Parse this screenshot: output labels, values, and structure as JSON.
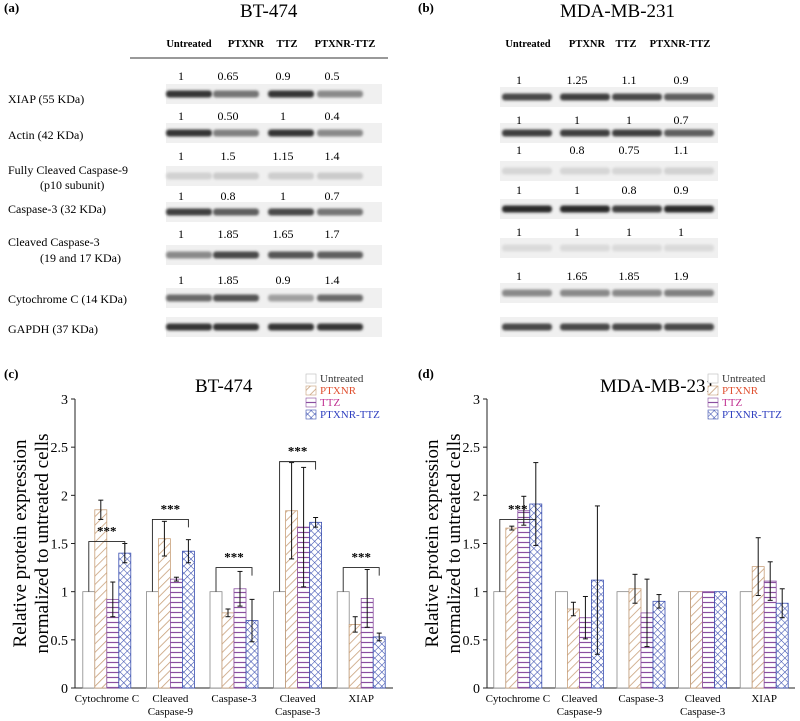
{
  "blots": [
    {
      "panel_label": "(a)",
      "title": "BT-474",
      "headers": [
        "Untreated",
        "PTXNR",
        "TTZ",
        "PTXNR-TTZ"
      ],
      "rows": [
        {
          "label": [
            "XIAP (55 KDa)"
          ],
          "values": [
            "1",
            "0.65",
            "0.9",
            "0.5"
          ],
          "intensity": [
            0.85,
            0.55,
            0.85,
            0.45
          ]
        },
        {
          "label": [
            "Actin  (42 KDa)"
          ],
          "values": [
            "1",
            "0.50",
            "1",
            "0.4"
          ],
          "intensity": [
            0.85,
            0.5,
            0.85,
            0.45
          ]
        },
        {
          "label": [
            "Fully Cleaved Caspase-9",
            "(p10 subunit)"
          ],
          "values": [
            "1",
            "1.5",
            "1.15",
            "1.4"
          ],
          "intensity": [
            0.12,
            0.15,
            0.14,
            0.15
          ]
        },
        {
          "label": [
            "Caspase-3 (32 KDa)"
          ],
          "values": [
            "1",
            "0.8",
            "1",
            "0.7"
          ],
          "intensity": [
            0.8,
            0.65,
            0.75,
            0.55
          ]
        },
        {
          "label": [
            "Cleaved Caspase-3",
            "(19 and 17 KDa)"
          ],
          "values": [
            "1",
            "1.85",
            "1.65",
            "1.7"
          ],
          "intensity": [
            0.45,
            0.75,
            0.7,
            0.65
          ]
        },
        {
          "label": [
            "Cytochrome C (14 KDa)"
          ],
          "values": [
            "1",
            "1.85",
            "0.9",
            "1.4"
          ],
          "intensity": [
            0.6,
            0.7,
            0.35,
            0.6
          ]
        },
        {
          "label": [
            "GAPDH  (37 KDa)"
          ],
          "values": [],
          "intensity": [
            0.85,
            0.85,
            0.85,
            0.85
          ]
        }
      ]
    },
    {
      "panel_label": "(b)",
      "title": "MDA-MB-231",
      "headers": [
        "Untreated",
        "PTXNR",
        "TTZ",
        "PTXNR-TTZ"
      ],
      "rows": [
        {
          "label": [],
          "values": [
            "1",
            "1.25",
            "1.1",
            "0.9"
          ],
          "intensity": [
            0.75,
            0.8,
            0.75,
            0.65
          ]
        },
        {
          "label": [],
          "values": [
            "1",
            "1",
            "1",
            "0.7"
          ],
          "intensity": [
            0.8,
            0.8,
            0.8,
            0.65
          ]
        },
        {
          "label": [],
          "values": [
            "1",
            "0.8",
            "0.75",
            "1.1"
          ],
          "intensity": [
            0.1,
            0.1,
            0.1,
            0.12
          ]
        },
        {
          "label": [],
          "values": [
            "1",
            "1",
            "0.8",
            "0.9"
          ],
          "intensity": [
            0.9,
            0.9,
            0.8,
            0.9
          ]
        },
        {
          "label": [],
          "values": [
            "1",
            "1",
            "1",
            "1"
          ],
          "intensity": [
            0.08,
            0.08,
            0.08,
            0.08
          ]
        },
        {
          "label": [],
          "values": [
            "1",
            "1.65",
            "1.85",
            "1.9"
          ],
          "intensity": [
            0.45,
            0.45,
            0.45,
            0.5
          ]
        },
        {
          "label": [],
          "values": [],
          "intensity": [
            0.75,
            0.75,
            0.75,
            0.75
          ]
        }
      ]
    }
  ],
  "colors": {
    "untreated": "#888888",
    "ptxnr": "#c8a07a",
    "ttz": "#8a4fa0",
    "ptxnr_ttz": "#3a4fb0",
    "legend_ptxnr_text": "#e05030",
    "legend_ttz_text": "#c03090",
    "legend_combo_text": "#3040c0"
  },
  "chart_data": [
    {
      "type": "bar",
      "panel_label": "(c)",
      "title": "BT-474",
      "ylabel": [
        "Relative protein expression",
        "normalized to untreated cells"
      ],
      "ylim": [
        0,
        3
      ],
      "yticks": [
        "0",
        "0.5",
        "1",
        "1.5",
        "2",
        "2.5",
        "3"
      ],
      "categories": [
        [
          "Cytochrome C"
        ],
        [
          "Cleaved",
          "Caspase-9"
        ],
        [
          "Caspase-3"
        ],
        [
          "Cleaved",
          "Caspase-3"
        ],
        [
          "XIAP"
        ]
      ],
      "series": [
        {
          "name": "Untreated",
          "values": [
            1,
            1,
            1,
            1,
            1
          ],
          "err": [
            0,
            0,
            0,
            0,
            0
          ]
        },
        {
          "name": "PTXNR",
          "values": [
            1.85,
            1.55,
            0.78,
            1.84,
            0.66
          ],
          "err": [
            0.1,
            0.18,
            0.04,
            0.5,
            0.08
          ]
        },
        {
          "name": "TTZ",
          "values": [
            0.92,
            1.13,
            1.03,
            1.67,
            0.93
          ],
          "err": [
            0.18,
            0.02,
            0.18,
            0.62,
            0.3
          ]
        },
        {
          "name": "PTXNR-TTZ",
          "values": [
            1.4,
            1.42,
            0.7,
            1.72,
            0.53
          ],
          "err": [
            0.1,
            0.12,
            0.22,
            0.05,
            0.04
          ]
        }
      ],
      "significance": [
        {
          "category": 0,
          "label": "***",
          "top": 1.52
        },
        {
          "category": 1,
          "label": "***",
          "top": 1.75
        },
        {
          "category": 2,
          "label": "***",
          "top": 1.25
        },
        {
          "category": 3,
          "label": "***",
          "top": 2.35
        },
        {
          "category": 4,
          "label": "***",
          "top": 1.25
        }
      ],
      "legend": [
        "Untreated",
        "PTXNR",
        "TTZ",
        "PTXNR-TTZ"
      ],
      "legend_position": "top-right"
    },
    {
      "type": "bar",
      "panel_label": "(d)",
      "title": "MDA-MB-231",
      "ylabel": [
        "Relative protein expression",
        "normalized to untreated cells"
      ],
      "ylim": [
        0,
        3
      ],
      "yticks": [
        "0",
        "0.5",
        "1",
        "1.5",
        "2",
        "2.5",
        "3"
      ],
      "categories": [
        [
          "Cytochrome C"
        ],
        [
          "Cleaved",
          "Caspase-9"
        ],
        [
          "Caspase-3"
        ],
        [
          "Cleaved",
          "Caspase-3"
        ],
        [
          "XIAP"
        ]
      ],
      "series": [
        {
          "name": "Untreated",
          "values": [
            1,
            1,
            1,
            1,
            1
          ],
          "err": [
            0,
            0,
            0,
            0,
            0
          ]
        },
        {
          "name": "PTXNR",
          "values": [
            1.66,
            0.82,
            1.03,
            1,
            1.26
          ],
          "err": [
            0.02,
            0.07,
            0.15,
            0,
            0.3
          ]
        },
        {
          "name": "TTZ",
          "values": [
            1.84,
            0.73,
            0.78,
            1,
            1.11
          ],
          "err": [
            0.15,
            0.22,
            0.35,
            0,
            0.2
          ]
        },
        {
          "name": "PTXNR-TTZ",
          "values": [
            1.91,
            1.12,
            0.9,
            1,
            0.88
          ],
          "err": [
            0.43,
            0.77,
            0.07,
            0,
            0.15
          ]
        }
      ],
      "significance": [
        {
          "category": 0,
          "label": "***",
          "top": 1.75
        }
      ],
      "legend": [
        "Untreated",
        "PTXNR",
        "TTZ",
        "PTXNR-TTZ"
      ],
      "legend_position": "top-right"
    }
  ]
}
